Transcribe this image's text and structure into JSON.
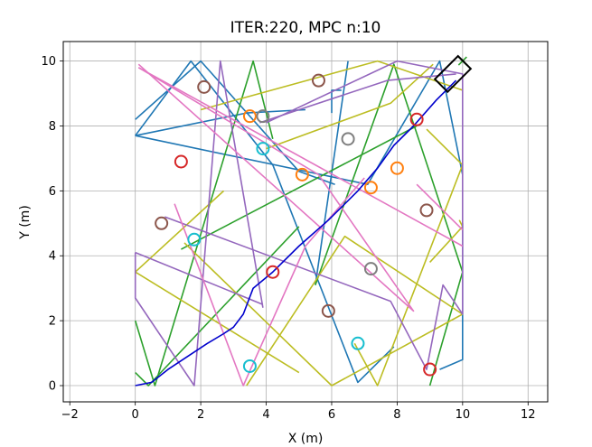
{
  "chart_data": {
    "type": "line",
    "title": "ITER:220, MPC n:10",
    "xlabel": "X (m)",
    "ylabel": "Y (m)",
    "xlim": [
      -2.2,
      12.6
    ],
    "ylim": [
      -0.5,
      10.6
    ],
    "xticks": [
      -2,
      0,
      2,
      4,
      6,
      8,
      10,
      12
    ],
    "yticks": [
      0,
      2,
      4,
      6,
      8,
      10
    ],
    "xtick_labels": [
      "−2",
      "0",
      "2",
      "4",
      "6",
      "8",
      "10",
      "12"
    ],
    "ytick_labels": [
      "0",
      "2",
      "4",
      "6",
      "8",
      "10"
    ],
    "grid": true,
    "legend": "none",
    "obstacle_paths": [
      {
        "color": "#1f77b4",
        "points": [
          [
            0,
            7.7
          ],
          [
            1.7,
            10
          ],
          [
            4.2,
            6.8
          ],
          [
            6.8,
            0.1
          ],
          [
            7.9,
            1.2
          ]
        ]
      },
      {
        "color": "#1f77b4",
        "points": [
          [
            0,
            8.2
          ],
          [
            2,
            10
          ],
          [
            5,
            6.6
          ],
          [
            6.1,
            6.2
          ]
        ]
      },
      {
        "color": "#1f77b4",
        "points": [
          [
            0,
            7.7
          ],
          [
            7.1,
            6.2
          ],
          [
            9.3,
            10
          ],
          [
            10,
            6.5
          ]
        ]
      },
      {
        "color": "#1f77b4",
        "points": [
          [
            6.5,
            10
          ],
          [
            5.5,
            3.1
          ]
        ]
      },
      {
        "color": "#1f77b4",
        "points": [
          [
            6,
            8.4
          ],
          [
            6,
            9.1
          ],
          [
            6.3,
            9.1
          ]
        ]
      },
      {
        "color": "#1f77b4",
        "points": [
          [
            0,
            7.7
          ],
          [
            3.4,
            8.4
          ],
          [
            5.2,
            8.5
          ]
        ]
      },
      {
        "color": "#1f77b4",
        "points": [
          [
            9.3,
            0.5
          ],
          [
            10,
            0.8
          ],
          [
            10,
            5
          ]
        ]
      },
      {
        "color": "#2ca02c",
        "points": [
          [
            0,
            2
          ],
          [
            0.6,
            0
          ],
          [
            3.6,
            10
          ],
          [
            4.2,
            7.6
          ]
        ]
      },
      {
        "color": "#2ca02c",
        "points": [
          [
            0,
            0.4
          ],
          [
            0.4,
            0
          ],
          [
            5,
            4.9
          ]
        ]
      },
      {
        "color": "#2ca02c",
        "points": [
          [
            1.4,
            4.2
          ],
          [
            8.6,
            8
          ]
        ]
      },
      {
        "color": "#2ca02c",
        "points": [
          [
            5.5,
            3.1
          ],
          [
            7.9,
            9.9
          ],
          [
            10,
            3.5
          ],
          [
            9,
            0
          ]
        ]
      },
      {
        "color": "#bcbd22",
        "points": [
          [
            2,
            8.5
          ],
          [
            7.4,
            10
          ],
          [
            10,
            9.1
          ]
        ]
      },
      {
        "color": "#bcbd22",
        "points": [
          [
            4,
            7.3
          ],
          [
            7.8,
            8.7
          ],
          [
            9.1,
            9.9
          ]
        ]
      },
      {
        "color": "#bcbd22",
        "points": [
          [
            8.9,
            7.9
          ],
          [
            10,
            6.8
          ],
          [
            7.4,
            0
          ],
          [
            6.7,
            1.3
          ]
        ]
      },
      {
        "color": "#bcbd22",
        "points": [
          [
            0,
            3.5
          ],
          [
            5,
            0.4
          ]
        ]
      },
      {
        "color": "#bcbd22",
        "points": [
          [
            0,
            3.5
          ],
          [
            2.7,
            6
          ]
        ]
      },
      {
        "color": "#bcbd22",
        "points": [
          [
            3.4,
            0
          ],
          [
            6.4,
            4.6
          ],
          [
            10,
            2.2
          ],
          [
            6,
            0
          ],
          [
            1.5,
            4.4
          ]
        ]
      },
      {
        "color": "#bcbd22",
        "points": [
          [
            9.9,
            5.1
          ],
          [
            10,
            4.9
          ],
          [
            9,
            3.8
          ]
        ]
      },
      {
        "color": "#9467bd",
        "points": [
          [
            0,
            4.1
          ],
          [
            0,
            2.7
          ],
          [
            1.8,
            0
          ],
          [
            2.6,
            10
          ],
          [
            3.9,
            2.4
          ]
        ]
      },
      {
        "color": "#9467bd",
        "points": [
          [
            0,
            4.1
          ],
          [
            3.9,
            2.5
          ]
        ]
      },
      {
        "color": "#9467bd",
        "points": [
          [
            3.8,
            8.1
          ],
          [
            7.7,
            9.4
          ],
          [
            9.8,
            9.6
          ]
        ]
      },
      {
        "color": "#9467bd",
        "points": [
          [
            4,
            8.1
          ],
          [
            8,
            10
          ],
          [
            10,
            9.6
          ],
          [
            10,
            2.2
          ],
          [
            9.4,
            3.1
          ],
          [
            8.9,
            0.5
          ],
          [
            7.8,
            2.6
          ],
          [
            0.9,
            5.2
          ]
        ]
      },
      {
        "color": "#e377c2",
        "points": [
          [
            0.1,
            9.8
          ],
          [
            5.6,
            6.5
          ],
          [
            8.5,
            2.3
          ],
          [
            0.1,
            9.9
          ]
        ]
      },
      {
        "color": "#e377c2",
        "points": [
          [
            1.2,
            5.6
          ],
          [
            3.3,
            0
          ],
          [
            5.2,
            4.3
          ],
          [
            7,
            6.4
          ]
        ]
      },
      {
        "color": "#e377c2",
        "points": [
          [
            0.1,
            9.8
          ],
          [
            10,
            4.3
          ]
        ]
      },
      {
        "color": "#e377c2",
        "points": [
          [
            8.6,
            6.2
          ],
          [
            10,
            4.8
          ]
        ]
      }
    ],
    "robot_path": {
      "color": "#0000cc",
      "points": [
        [
          0,
          0
        ],
        [
          0.5,
          0.1
        ],
        [
          1,
          0.5
        ],
        [
          1.6,
          0.9
        ],
        [
          2.2,
          1.3
        ],
        [
          2.7,
          1.6
        ],
        [
          3,
          1.8
        ],
        [
          3.3,
          2.2
        ],
        [
          3.6,
          3
        ],
        [
          4.2,
          3.5
        ],
        [
          5,
          4.3
        ],
        [
          5.9,
          5.1
        ],
        [
          6.8,
          6
        ],
        [
          7.4,
          6.7
        ],
        [
          7.9,
          7.4
        ],
        [
          8.5,
          8
        ],
        [
          9.2,
          8.8
        ],
        [
          9.8,
          9.4
        ]
      ]
    },
    "obstacles": [
      {
        "x": 1.4,
        "y": 6.9,
        "color": "#d62728"
      },
      {
        "x": 8.6,
        "y": 8.2,
        "color": "#d62728"
      },
      {
        "x": 4.2,
        "y": 3.5,
        "color": "#d62728"
      },
      {
        "x": 9,
        "y": 0.5,
        "color": "#d62728"
      },
      {
        "x": 2.1,
        "y": 9.2,
        "color": "#8c564b"
      },
      {
        "x": 5.6,
        "y": 9.4,
        "color": "#8c564b"
      },
      {
        "x": 0.8,
        "y": 5,
        "color": "#8c564b"
      },
      {
        "x": 5.9,
        "y": 2.3,
        "color": "#8c564b"
      },
      {
        "x": 8.9,
        "y": 5.4,
        "color": "#8c564b"
      },
      {
        "x": 3.5,
        "y": 8.3,
        "color": "#ff7f0e"
      },
      {
        "x": 5.1,
        "y": 6.5,
        "color": "#ff7f0e"
      },
      {
        "x": 7.2,
        "y": 6.1,
        "color": "#ff7f0e"
      },
      {
        "x": 8,
        "y": 6.7,
        "color": "#ff7f0e"
      },
      {
        "x": 3.9,
        "y": 8.3,
        "color": "#7f7f7f"
      },
      {
        "x": 6.5,
        "y": 7.6,
        "color": "#7f7f7f"
      },
      {
        "x": 7.2,
        "y": 3.6,
        "color": "#7f7f7f"
      },
      {
        "x": 3.9,
        "y": 7.3,
        "color": "#17becf"
      },
      {
        "x": 1.8,
        "y": 4.5,
        "color": "#17becf"
      },
      {
        "x": 3.5,
        "y": 0.6,
        "color": "#17becf"
      },
      {
        "x": 6.8,
        "y": 1.3,
        "color": "#17becf"
      }
    ],
    "goal": {
      "x": 10,
      "y": 10,
      "marker": "x",
      "color": "#2ca02c"
    },
    "vehicle": {
      "x": 9.7,
      "y": 9.6,
      "heading_deg": 45,
      "length_m": 1.0,
      "width_m": 0.55,
      "color": "#000000"
    }
  }
}
